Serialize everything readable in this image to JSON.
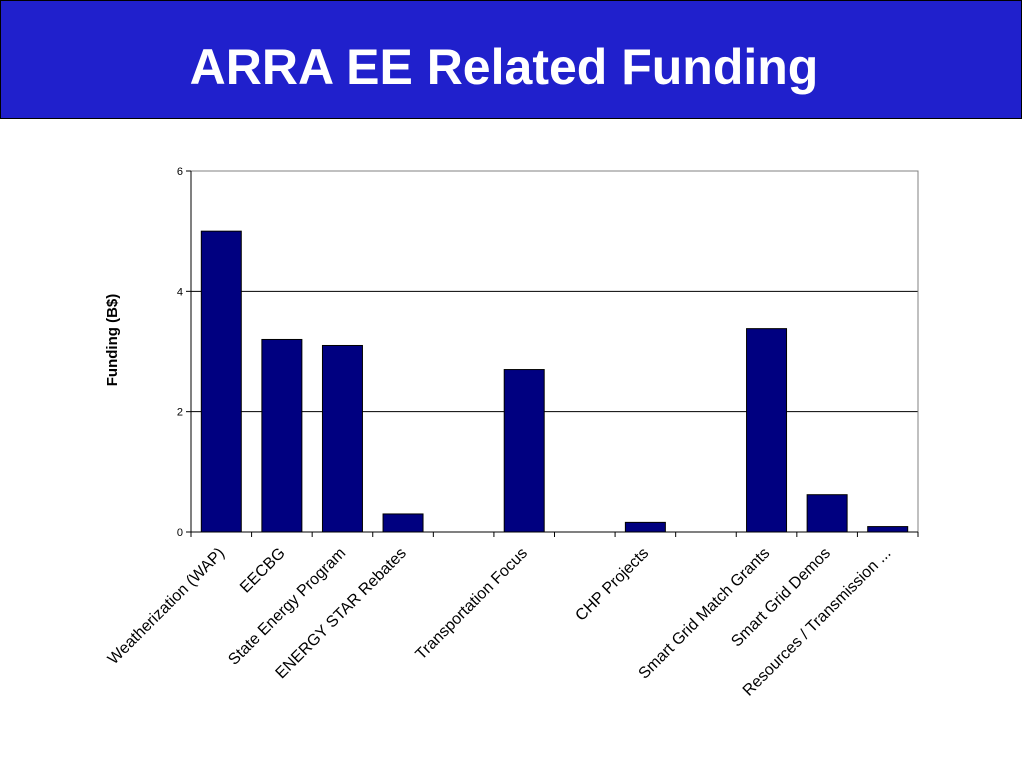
{
  "slide": {
    "title": "ARRA EE Related Funding"
  },
  "colors": {
    "title_bar": "#2020cc",
    "bar_fill": "#000080",
    "title_text": "#ffffff"
  },
  "chart_data": {
    "type": "bar",
    "title": "",
    "xlabel": "",
    "ylabel": "Funding (B$)",
    "ylim": [
      0,
      6
    ],
    "yticks": [
      0,
      2,
      4,
      6
    ],
    "grid": true,
    "legend": "none",
    "categories": [
      "Weatherization (WAP)",
      "EECBG",
      "State Energy Program",
      "ENERGY STAR Rebates",
      "",
      "Transportation Focus",
      "",
      "CHP Projects",
      "",
      "Smart Grid Match Grants",
      "Smart Grid Demos",
      "Resources / Transmission ..."
    ],
    "values": [
      5.0,
      3.2,
      3.1,
      0.3,
      null,
      2.7,
      null,
      0.16,
      null,
      3.38,
      0.62,
      0.09
    ]
  }
}
